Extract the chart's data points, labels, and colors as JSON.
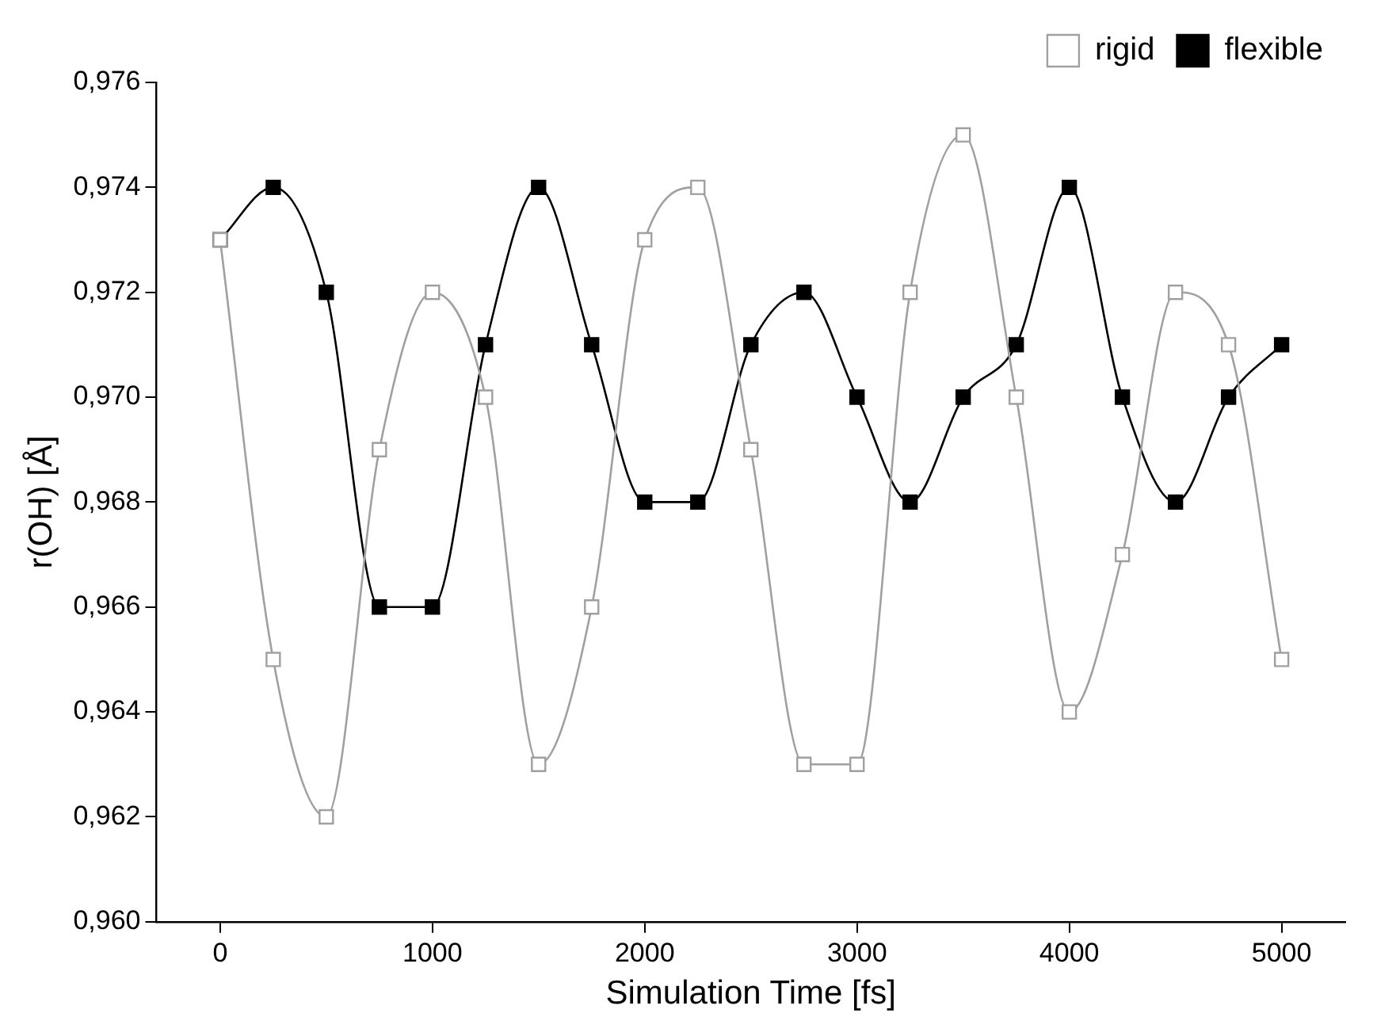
{
  "chart_data": {
    "type": "line",
    "xlabel": "Simulation Time [fs]",
    "ylabel": "r(OH) [Å]",
    "x": [
      0,
      250,
      500,
      750,
      1000,
      1250,
      1500,
      1750,
      2000,
      2250,
      2500,
      2750,
      3000,
      3250,
      3500,
      3750,
      4000,
      4250,
      4500,
      4750,
      5000
    ],
    "series": [
      {
        "name": "flexible",
        "color": "#000000",
        "values": [
          0.973,
          0.974,
          0.972,
          0.966,
          0.966,
          0.971,
          0.974,
          0.971,
          0.968,
          0.968,
          0.971,
          0.972,
          0.97,
          0.968,
          0.97,
          0.971,
          0.974,
          0.97,
          0.968,
          0.97,
          0.971
        ]
      },
      {
        "name": "rigid",
        "color": "#a0a0a0",
        "values": [
          0.973,
          0.965,
          0.962,
          0.969,
          0.972,
          0.97,
          0.963,
          0.966,
          0.973,
          0.974,
          0.969,
          0.963,
          0.963,
          0.972,
          0.975,
          0.97,
          0.964,
          0.967,
          0.972,
          0.971,
          0.965
        ]
      }
    ],
    "xlim": [
      -300,
      5300
    ],
    "xticks": [
      0,
      1000,
      2000,
      3000,
      4000,
      5000
    ],
    "ylim": [
      0.96,
      0.976
    ],
    "yticks": [
      {
        "value": 0.96,
        "label": "0,960"
      },
      {
        "value": 0.962,
        "label": "0,962"
      },
      {
        "value": 0.964,
        "label": "0,964"
      },
      {
        "value": 0.966,
        "label": "0,966"
      },
      {
        "value": 0.968,
        "label": "0,968"
      },
      {
        "value": 0.97,
        "label": "0,970"
      },
      {
        "value": 0.972,
        "label": "0,972"
      },
      {
        "value": 0.974,
        "label": "0,974"
      },
      {
        "value": 0.976,
        "label": "0,976"
      }
    ],
    "grid": false,
    "legend": "top right",
    "marker": "square",
    "line_style": "solid"
  }
}
